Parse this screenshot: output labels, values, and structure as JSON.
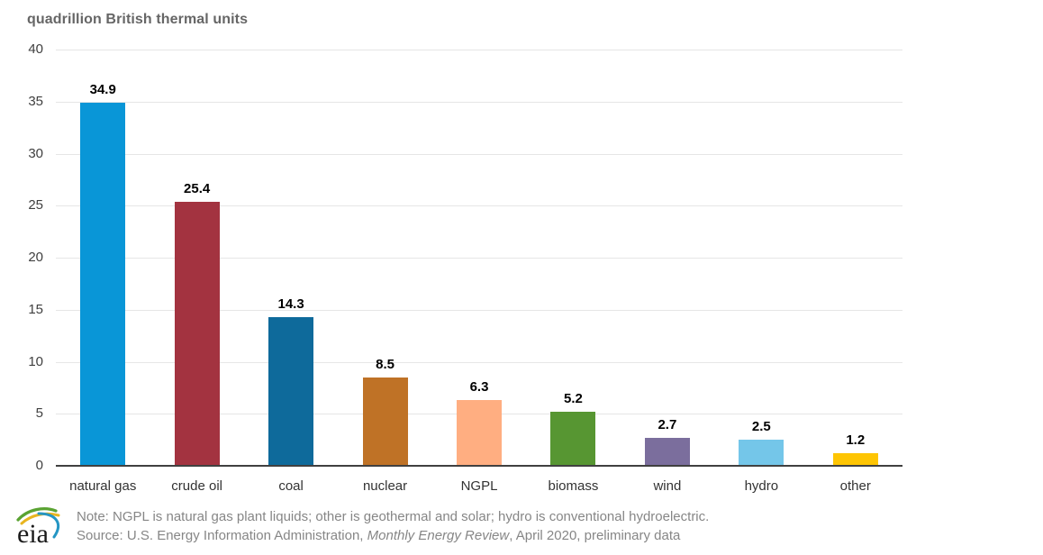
{
  "title": "quadrillion British thermal units",
  "chart_data": {
    "type": "bar",
    "title": "quadrillion British thermal units",
    "categories": [
      "natural gas",
      "crude oil",
      "coal",
      "nuclear",
      "NGPL",
      "biomass",
      "wind",
      "hydro",
      "other"
    ],
    "values": [
      34.9,
      25.4,
      14.3,
      8.5,
      6.3,
      5.2,
      2.7,
      2.5,
      1.2
    ],
    "value_labels": [
      "34.9",
      "25.4",
      "14.3",
      "8.5",
      "6.3",
      "5.2",
      "2.7",
      "2.5",
      "1.2"
    ],
    "bar_colors": [
      "#0996d7",
      "#a33340",
      "#0e6a9b",
      "#bf7226",
      "#ffae81",
      "#579632",
      "#7b6e9d",
      "#74c6e9",
      "#fec503"
    ],
    "xlabel": "",
    "ylabel": "quadrillion British thermal units",
    "ylim": [
      0,
      40
    ],
    "ytick_step": 5,
    "ytick_labels": [
      "0",
      "5",
      "10",
      "15",
      "20",
      "25",
      "30",
      "35",
      "40"
    ],
    "grid": true,
    "legend": "none",
    "gridline_color": "#e6e6e6",
    "axis_color": "#404040"
  },
  "footer": {
    "note": "Note: NGPL is natural gas plant liquids; other is geothermal and solar; hydro is conventional hydroelectric.",
    "source_prefix": "Source: U.S. Energy Information Administration, ",
    "source_italic": "Monthly Energy Review",
    "source_suffix": ", April 2020, preliminary data",
    "logo_text": "eia"
  }
}
